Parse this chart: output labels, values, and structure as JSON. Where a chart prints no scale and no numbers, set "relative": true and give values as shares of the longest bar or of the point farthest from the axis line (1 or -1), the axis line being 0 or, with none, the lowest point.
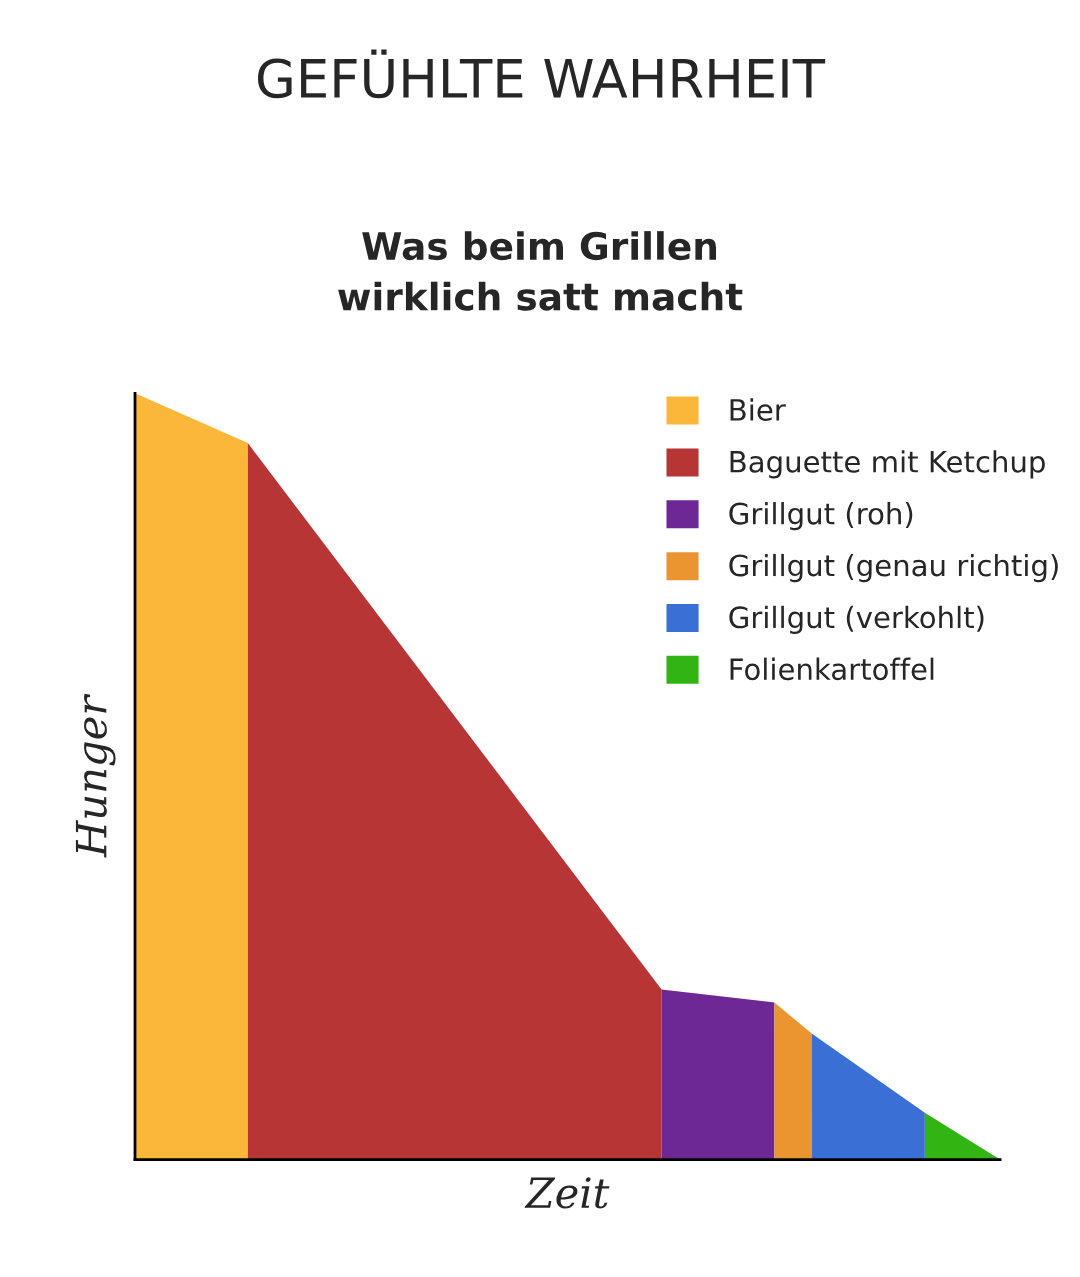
{
  "chart_data": {
    "type": "area",
    "title": "GEFÜHLTE WAHRHEIT",
    "subtitle": "Was beim Grillen\nwirklich satt macht",
    "xlabel": "Zeit",
    "ylabel": "Hunger",
    "relative": true,
    "legend": "top right",
    "tick_labels": false,
    "categories": [
      null,
      null,
      null,
      null,
      null,
      null,
      null,
      null,
      null,
      null,
      null,
      null,
      null,
      null,
      null,
      null,
      null,
      null,
      null,
      null,
      null,
      null,
      null,
      null
    ],
    "series": [
      {
        "name": "Bier",
        "color": "#fbb73a",
        "values": [
          1,
          null,
          null,
          0.935,
          null,
          null,
          null,
          null,
          null,
          null,
          null,
          null,
          null,
          null,
          null,
          null,
          null,
          null,
          null,
          null,
          null,
          null,
          null,
          null
        ]
      },
      {
        "name": "Baguette mit Ketchup",
        "color": "#b73535",
        "values": [
          null,
          null,
          null,
          0.935,
          null,
          null,
          null,
          null,
          null,
          null,
          null,
          null,
          null,
          null,
          0.222,
          null,
          null,
          null,
          null,
          null,
          null,
          null,
          null,
          null
        ]
      },
      {
        "name": "Grillgut (roh)",
        "color": "#6e2896",
        "values": [
          null,
          null,
          null,
          null,
          null,
          null,
          null,
          null,
          null,
          null,
          null,
          null,
          null,
          null,
          0.222,
          null,
          null,
          0.205,
          null,
          null,
          null,
          null,
          null,
          null
        ]
      },
      {
        "name": "Grillgut (genau richtig)",
        "color": "#ea9530",
        "values": [
          null,
          null,
          null,
          null,
          null,
          null,
          null,
          null,
          null,
          null,
          null,
          null,
          null,
          null,
          null,
          null,
          null,
          0.205,
          0.164,
          null,
          null,
          null,
          null,
          null
        ]
      },
      {
        "name": "Grillgut (verkohlt)",
        "color": "#3a70d6",
        "values": [
          null,
          null,
          null,
          null,
          null,
          null,
          null,
          null,
          null,
          null,
          null,
          null,
          null,
          null,
          null,
          null,
          null,
          null,
          0.164,
          null,
          null,
          0.061,
          null,
          null
        ]
      },
      {
        "name": "Folienkartoffel",
        "color": "#32b513",
        "values": [
          null,
          null,
          null,
          null,
          null,
          null,
          null,
          null,
          null,
          null,
          null,
          null,
          null,
          null,
          null,
          null,
          null,
          null,
          null,
          null,
          null,
          0.061,
          null,
          0
        ]
      }
    ]
  }
}
